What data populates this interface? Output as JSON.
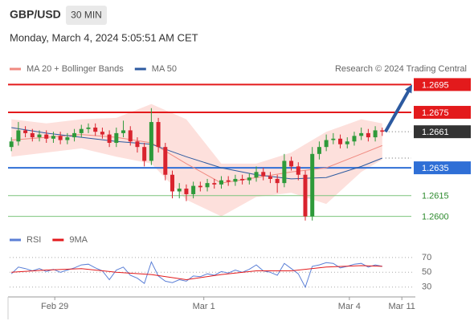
{
  "header": {
    "symbol": "GBP/USD",
    "interval": "30 MIN",
    "timestamp": "Monday, March 4, 2024 5:05:51 AM CET"
  },
  "chart_data": [
    {
      "type": "candlestick",
      "attribution": "Research © 2024 Trading Central",
      "up_color": "#2e9a3a",
      "down_color": "#d9232e",
      "xlim": [
        -0.25,
        57.5
      ],
      "ylim": [
        1.2594,
        1.2701
      ],
      "open": [
        1.265,
        1.2654,
        1.2662,
        1.266,
        1.2657,
        1.2659,
        1.2656,
        1.2658,
        1.2655,
        1.2657,
        1.266,
        1.2663,
        1.2664,
        1.2661,
        1.2659,
        1.2653,
        1.266,
        1.2662,
        1.2654,
        1.265,
        1.264,
        1.2668,
        1.265,
        1.263,
        1.2618,
        1.262,
        1.2616,
        1.2622,
        1.2621,
        1.2624,
        1.2623,
        1.2626,
        1.2625,
        1.2627,
        1.2626,
        1.2628,
        1.2632,
        1.2629,
        1.2627,
        1.2624,
        1.264,
        1.2636,
        1.263,
        1.26,
        1.2645,
        1.265,
        1.2655,
        1.2656,
        1.2652,
        1.2654,
        1.2658,
        1.266,
        1.2657,
        1.2662
      ],
      "high": [
        1.2657,
        1.2668,
        1.2665,
        1.2663,
        1.2662,
        1.2662,
        1.2661,
        1.2661,
        1.266,
        1.2663,
        1.2666,
        1.2667,
        1.2667,
        1.2664,
        1.2662,
        1.2664,
        1.2669,
        1.2665,
        1.2657,
        1.2653,
        1.2678,
        1.2671,
        1.2653,
        1.2633,
        1.2624,
        1.2623,
        1.2625,
        1.2625,
        1.2627,
        1.2627,
        1.2629,
        1.2629,
        1.263,
        1.263,
        1.2631,
        1.2636,
        1.2635,
        1.2632,
        1.263,
        1.2645,
        1.2643,
        1.2639,
        1.2633,
        1.265,
        1.2654,
        1.2659,
        1.266,
        1.2659,
        1.2657,
        1.2661,
        1.2664,
        1.2663,
        1.2665,
        1.2664
      ],
      "low": [
        1.2647,
        1.2651,
        1.2657,
        1.2654,
        1.2654,
        1.2653,
        1.2653,
        1.2652,
        1.2652,
        1.2654,
        1.2657,
        1.266,
        1.2658,
        1.2656,
        1.265,
        1.265,
        1.2657,
        1.2651,
        1.2646,
        1.2636,
        1.2637,
        1.2646,
        1.2626,
        1.2613,
        1.2613,
        1.2611,
        1.2613,
        1.2618,
        1.2618,
        1.262,
        1.262,
        1.2622,
        1.2622,
        1.2623,
        1.2623,
        1.2625,
        1.2626,
        1.2624,
        1.2617,
        1.2621,
        1.2633,
        1.2626,
        1.2597,
        1.2597,
        1.2641,
        1.2647,
        1.2652,
        1.2649,
        1.2649,
        1.2651,
        1.2655,
        1.2654,
        1.2654,
        1.2658
      ],
      "close": [
        1.2654,
        1.2662,
        1.266,
        1.2657,
        1.2659,
        1.2656,
        1.2658,
        1.2655,
        1.2657,
        1.266,
        1.2663,
        1.2664,
        1.2661,
        1.2659,
        1.2653,
        1.266,
        1.2662,
        1.2654,
        1.265,
        1.264,
        1.2668,
        1.265,
        1.263,
        1.2618,
        1.262,
        1.2616,
        1.2622,
        1.2621,
        1.2624,
        1.2623,
        1.2626,
        1.2625,
        1.2627,
        1.2626,
        1.2628,
        1.2632,
        1.2629,
        1.2627,
        1.2624,
        1.264,
        1.2636,
        1.263,
        1.26,
        1.2645,
        1.265,
        1.2655,
        1.2656,
        1.2652,
        1.2654,
        1.2658,
        1.266,
        1.2657,
        1.2662,
        1.2661
      ],
      "series": [
        {
          "name": "MA 20 + Bollinger Bands",
          "color": "#f08a80",
          "band_color": "#fde0dc",
          "x": [
            0,
            5,
            10,
            15,
            20,
            25,
            30,
            35,
            40,
            45,
            50,
            53
          ],
          "values": [
            1.2655,
            1.2657,
            1.2659,
            1.2657,
            1.2653,
            1.2638,
            1.2624,
            1.2628,
            1.2632,
            1.2635,
            1.2645,
            1.2651
          ],
          "upper": [
            1.267,
            1.2667,
            1.267,
            1.2671,
            1.2681,
            1.267,
            1.2638,
            1.2638,
            1.2646,
            1.2661,
            1.267,
            1.2667
          ],
          "lower": [
            1.2643,
            1.2646,
            1.2649,
            1.2643,
            1.2638,
            1.2612,
            1.26,
            1.2614,
            1.2617,
            1.2609,
            1.2632,
            1.2641
          ]
        },
        {
          "name": "MA 50",
          "color": "#2c5aa0",
          "x": [
            0,
            5,
            10,
            15,
            20,
            25,
            30,
            35,
            40,
            45,
            50,
            53
          ],
          "values": [
            1.2664,
            1.266,
            1.2657,
            1.2654,
            1.2652,
            1.2643,
            1.2635,
            1.263,
            1.2627,
            1.2628,
            1.2636,
            1.2642
          ]
        }
      ],
      "levels": {
        "values": [
          1.2695,
          1.2675,
          1.2635,
          1.2615,
          1.26
        ],
        "value_labels": [
          "1.2695",
          "1.2675",
          "1.2635",
          "1.2615",
          "1.2600"
        ],
        "colors": [
          "#e31a1c",
          "#e31a1c",
          "#2f6fd6",
          "#7cc47c",
          "#7cc47c"
        ],
        "label_style": [
          "box",
          "box",
          "box",
          "text",
          "text"
        ]
      },
      "forecast_color": "#2c5aa0"
    },
    {
      "type": "line",
      "xlim": [
        -0.25,
        57.5
      ],
      "ylim": [
        20,
        85
      ],
      "yticks": [
        70,
        50,
        30
      ],
      "xticks": [
        {
          "value": 6.2,
          "label": "Feb 29"
        },
        {
          "value": 27.5,
          "label": "Mar 1"
        },
        {
          "value": 48.3,
          "label": "Mar 4"
        },
        {
          "value": 55.8,
          "label": "Mar 11"
        }
      ],
      "series": [
        {
          "name": "RSI",
          "color": "#5b7fd6",
          "values": [
            48,
            57,
            55,
            52,
            55,
            51,
            54,
            50,
            53,
            56,
            60,
            61,
            56,
            52,
            40,
            53,
            57,
            46,
            42,
            35,
            64,
            45,
            38,
            36,
            40,
            38,
            45,
            44,
            48,
            46,
            51,
            49,
            53,
            50,
            54,
            60,
            52,
            50,
            46,
            62,
            55,
            48,
            30,
            58,
            60,
            63,
            62,
            56,
            58,
            61,
            62,
            57,
            60,
            58
          ]
        },
        {
          "name": "9MA",
          "color": "#e31a1c",
          "x": [
            0,
            5,
            10,
            15,
            20,
            25,
            30,
            35,
            40,
            45,
            50,
            53
          ],
          "values": [
            50,
            53,
            55,
            50,
            47,
            40,
            47,
            52,
            52,
            57,
            59,
            58
          ]
        }
      ]
    }
  ]
}
